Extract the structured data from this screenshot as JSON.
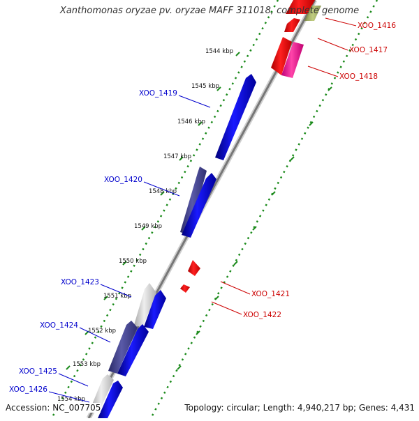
{
  "title": "Xanthomonas oryzae pv. oryzae MAFF 311018, complete genome",
  "footer": {
    "accession": "Accession: NC_007705",
    "topology": "Topology: circular; Length: 4,940,217 bp; Genes: 4,431"
  },
  "colors": {
    "forward_cds": "#0000ee",
    "reverse_cds": "#ee0000",
    "reverse_cds_alt": "#ee1188",
    "forward_other": "#4a4a8c",
    "forward_pseudo": "#c8c8c8",
    "reverse_other": "#8a9a3a",
    "backbone": "#888888",
    "scale_ticks": "#1a8a1a",
    "left_label": "#0000cc",
    "right_label": "#cc0000"
  },
  "ticks": [
    "1544 kbp",
    "1545 kbp",
    "1546 kbp",
    "1547 kbp",
    "1548 kbp",
    "1549 kbp",
    "1550 kbp",
    "1551 kbp",
    "1552 kbp",
    "1553 kbp",
    "1554 kbp"
  ],
  "left_labels": [
    "XOO_1419",
    "XOO_1420",
    "XOO_1423",
    "XOO_1424",
    "XOO_1425",
    "XOO_1426"
  ],
  "right_labels": [
    "XOO_1416",
    "XOO_1417",
    "XOO_1418",
    "XOO_1421",
    "XOO_1422"
  ]
}
